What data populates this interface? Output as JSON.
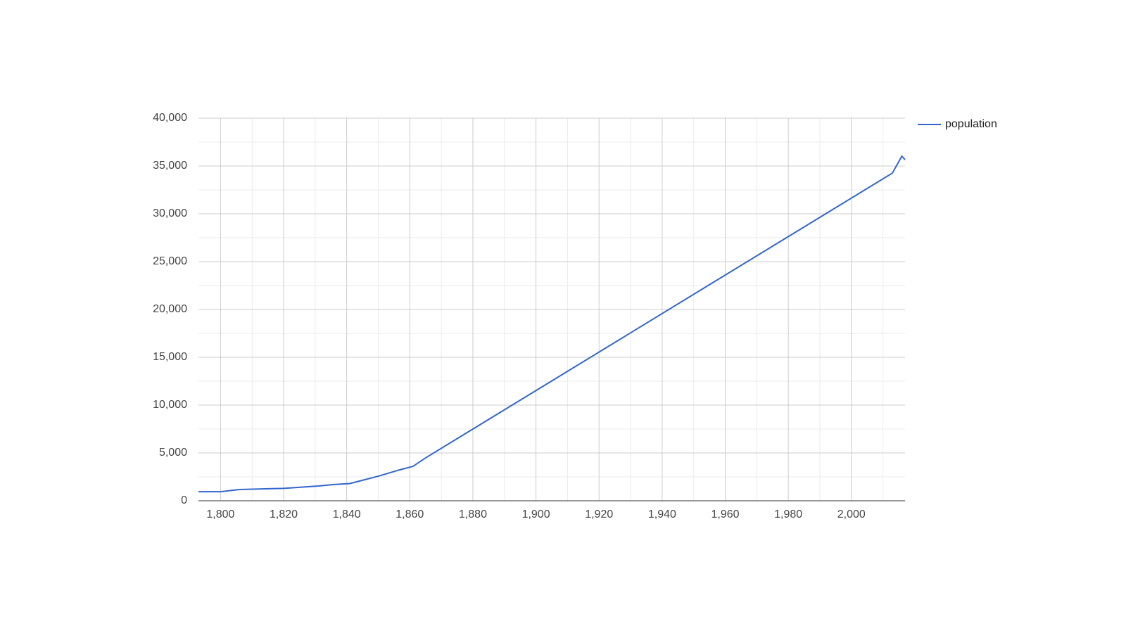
{
  "chart_data": {
    "type": "line",
    "x": [
      1793,
      1800,
      1806,
      1820,
      1831,
      1836,
      1841,
      1850,
      1856,
      1861,
      1865,
      2013,
      2016,
      2017
    ],
    "series": [
      {
        "name": "population",
        "color": "#3366cc",
        "values": [
          950,
          950,
          1180,
          1300,
          1540,
          1700,
          1800,
          2570,
          3160,
          3600,
          4480,
          34260,
          36030,
          35660
        ]
      }
    ],
    "xlim": [
      1793,
      2017
    ],
    "xticks": [
      {
        "value": 1800,
        "label": "1,800"
      },
      {
        "value": 1820,
        "label": "1,820"
      },
      {
        "value": 1840,
        "label": "1,840"
      },
      {
        "value": 1860,
        "label": "1,860"
      },
      {
        "value": 1880,
        "label": "1,880"
      },
      {
        "value": 1900,
        "label": "1,900"
      },
      {
        "value": 1920,
        "label": "1,920"
      },
      {
        "value": 1940,
        "label": "1,940"
      },
      {
        "value": 1960,
        "label": "1,960"
      },
      {
        "value": 1980,
        "label": "1,980"
      },
      {
        "value": 2000,
        "label": "2,000"
      }
    ],
    "ylim": [
      0,
      40000
    ],
    "yticks": [
      0,
      {
        "value": 5000,
        "label": "5,000"
      },
      {
        "value": 10000,
        "label": "10,000"
      },
      {
        "value": 15000,
        "label": "15,000"
      },
      {
        "value": 20000,
        "label": "20,000"
      },
      {
        "value": 25000,
        "label": "25,000"
      },
      {
        "value": 30000,
        "label": "30,000"
      },
      {
        "value": 35000,
        "label": "35,000"
      },
      {
        "value": 40000,
        "label": "40,000"
      }
    ],
    "grid": true,
    "minor_grid": true,
    "legend": "right"
  }
}
